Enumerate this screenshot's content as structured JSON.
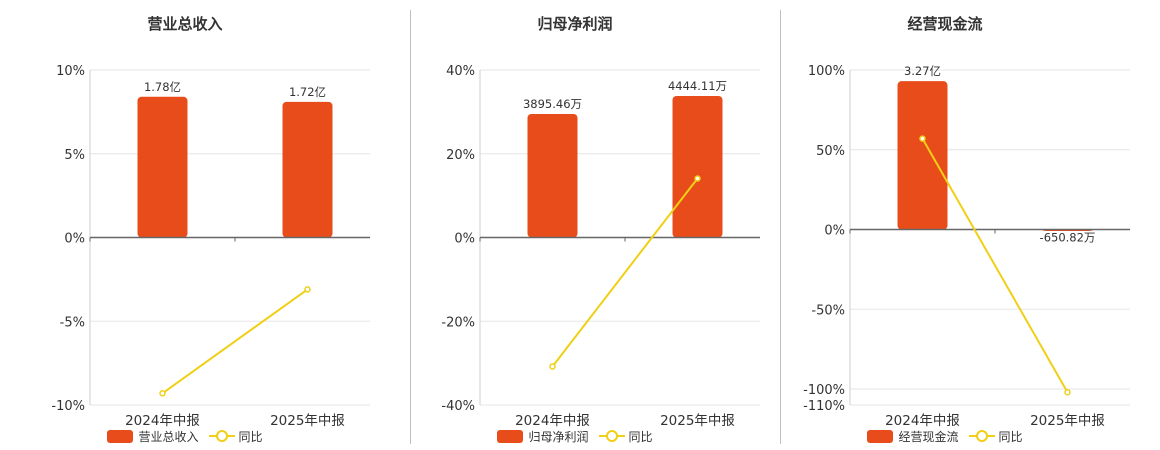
{
  "legend_yoy_label": "同比",
  "colors": {
    "bar": "#e84c1a",
    "line": "#f0cf16"
  },
  "chart_data": [
    {
      "type": "bar",
      "title": "营业总收入",
      "categories": [
        "2024年中报",
        "2025年中报"
      ],
      "bar_series_name": "营业总收入",
      "bar_labels": [
        "1.78亿",
        "1.72亿"
      ],
      "bar_values_display_pct": [
        8.4,
        8.1
      ],
      "yoy_series_name": "同比",
      "yoy_values_pct": [
        -9.3,
        -3.1
      ],
      "ylim": [
        -10,
        10
      ],
      "yticks": [
        "10%",
        "5%",
        "0%",
        "-5%",
        "-10%"
      ],
      "ytick_values": [
        10,
        5,
        0,
        -5,
        -10
      ]
    },
    {
      "type": "bar",
      "title": "归母净利润",
      "categories": [
        "2024年中报",
        "2025年中报"
      ],
      "bar_series_name": "归母净利润",
      "bar_labels": [
        "3895.46万",
        "4444.11万"
      ],
      "bar_values_display_pct": [
        29.5,
        33.8
      ],
      "yoy_series_name": "同比",
      "yoy_values_pct": [
        -30.8,
        14.1
      ],
      "ylim": [
        -40,
        40
      ],
      "yticks": [
        "40%",
        "20%",
        "0%",
        "-20%",
        "-40%"
      ],
      "ytick_values": [
        40,
        20,
        0,
        -20,
        -40
      ]
    },
    {
      "type": "bar",
      "title": "经营现金流",
      "categories": [
        "2024年中报",
        "2025年中报"
      ],
      "bar_series_name": "经营现金流",
      "bar_labels": [
        "3.27亿",
        "-650.82万"
      ],
      "bar_values_display_pct": [
        93,
        -0.5
      ],
      "yoy_series_name": "同比",
      "yoy_values_pct": [
        57,
        -102
      ],
      "ylim": [
        -110,
        100
      ],
      "yticks": [
        "100%",
        "50%",
        "0%",
        "-50%",
        "-100%",
        "-110%"
      ],
      "ytick_values": [
        100,
        50,
        0,
        -50,
        -100,
        -110
      ]
    }
  ]
}
